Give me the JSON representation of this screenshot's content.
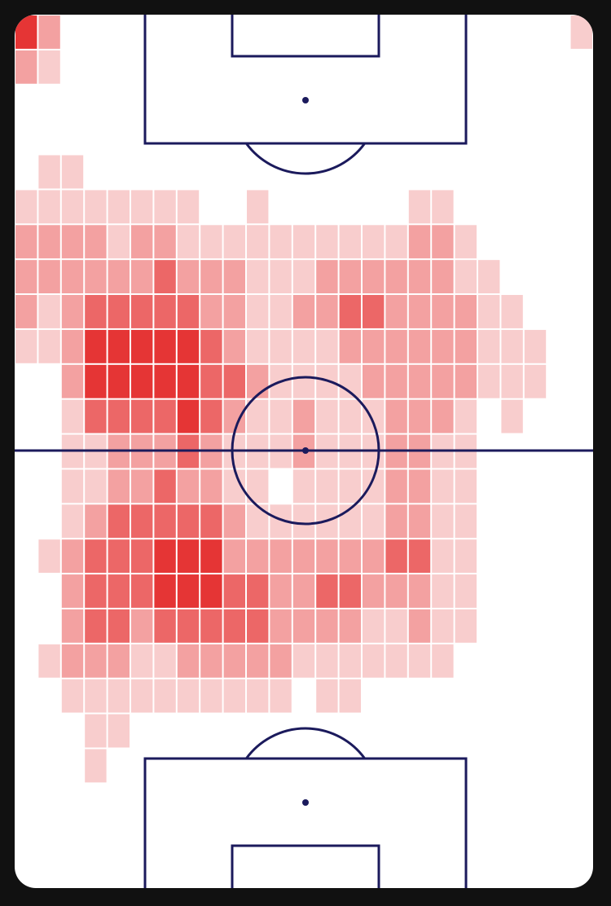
{
  "chart_data": {
    "type": "heatmap",
    "colors": [
      "#f8cdcd",
      "#f3a1a1",
      "#ec6767",
      "#e53535"
    ],
    "values": [
      [
        4,
        2,
        null,
        null,
        null,
        null,
        null,
        null,
        null,
        null,
        null,
        null,
        null,
        null,
        null,
        null,
        null,
        null,
        null,
        null,
        null,
        null,
        null,
        null,
        1
      ],
      [
        2,
        1,
        null,
        null,
        null,
        null,
        null,
        null,
        null,
        null,
        null,
        null,
        null,
        null,
        null,
        null,
        null,
        null,
        null,
        null,
        null,
        null,
        null,
        null,
        null
      ],
      [
        null,
        null,
        null,
        null,
        null,
        null,
        null,
        null,
        null,
        null,
        null,
        null,
        null,
        null,
        null,
        null,
        null,
        null,
        null,
        null,
        null,
        null,
        null,
        null,
        null
      ],
      [
        null,
        null,
        null,
        null,
        null,
        null,
        null,
        null,
        null,
        null,
        null,
        null,
        null,
        null,
        null,
        null,
        null,
        null,
        null,
        null,
        null,
        null,
        null,
        null,
        null
      ],
      [
        null,
        1,
        1,
        null,
        null,
        null,
        null,
        null,
        null,
        null,
        null,
        null,
        null,
        null,
        null,
        null,
        null,
        null,
        null,
        null,
        null,
        null,
        null,
        null,
        null
      ],
      [
        1,
        1,
        1,
        1,
        1,
        1,
        1,
        1,
        null,
        null,
        1,
        null,
        null,
        null,
        null,
        null,
        null,
        1,
        1,
        null,
        null,
        null,
        null,
        null,
        null
      ],
      [
        2,
        2,
        2,
        2,
        1,
        2,
        2,
        1,
        1,
        1,
        1,
        1,
        1,
        1,
        1,
        1,
        1,
        2,
        2,
        1,
        null,
        null,
        null,
        null,
        null
      ],
      [
        2,
        2,
        2,
        2,
        2,
        2,
        3,
        2,
        2,
        2,
        1,
        1,
        1,
        2,
        2,
        2,
        2,
        2,
        2,
        1,
        1,
        null,
        null,
        null,
        null
      ],
      [
        2,
        1,
        2,
        3,
        3,
        3,
        3,
        3,
        2,
        2,
        1,
        1,
        2,
        2,
        3,
        3,
        2,
        2,
        2,
        2,
        1,
        1,
        null,
        null,
        null
      ],
      [
        1,
        1,
        2,
        4,
        4,
        4,
        4,
        4,
        3,
        2,
        1,
        1,
        1,
        1,
        2,
        2,
        2,
        2,
        2,
        2,
        1,
        1,
        1,
        null,
        null
      ],
      [
        null,
        null,
        2,
        4,
        4,
        4,
        4,
        4,
        3,
        3,
        2,
        1,
        1,
        1,
        1,
        2,
        2,
        2,
        2,
        2,
        1,
        1,
        1,
        null,
        null
      ],
      [
        null,
        null,
        1,
        3,
        3,
        3,
        3,
        4,
        3,
        2,
        1,
        1,
        2,
        1,
        1,
        1,
        2,
        2,
        2,
        1,
        null,
        1,
        null,
        null,
        null
      ],
      [
        null,
        null,
        1,
        1,
        2,
        2,
        2,
        3,
        2,
        1,
        1,
        1,
        2,
        1,
        1,
        1,
        2,
        2,
        1,
        1,
        null,
        null,
        null,
        null,
        null
      ],
      [
        null,
        null,
        1,
        1,
        2,
        2,
        3,
        2,
        2,
        1,
        1,
        null,
        1,
        1,
        1,
        1,
        2,
        2,
        1,
        1,
        null,
        null,
        null,
        null,
        null
      ],
      [
        null,
        null,
        1,
        2,
        3,
        3,
        3,
        3,
        3,
        2,
        1,
        1,
        1,
        1,
        1,
        1,
        2,
        2,
        1,
        1,
        null,
        null,
        null,
        null,
        null
      ],
      [
        null,
        1,
        2,
        3,
        3,
        3,
        4,
        4,
        4,
        2,
        2,
        2,
        2,
        2,
        2,
        2,
        3,
        3,
        1,
        1,
        null,
        null,
        null,
        null,
        null
      ],
      [
        null,
        null,
        2,
        3,
        3,
        3,
        4,
        4,
        4,
        3,
        3,
        2,
        2,
        3,
        3,
        2,
        2,
        2,
        1,
        1,
        null,
        null,
        null,
        null,
        null
      ],
      [
        null,
        null,
        2,
        3,
        3,
        2,
        3,
        3,
        3,
        3,
        3,
        2,
        2,
        2,
        2,
        1,
        1,
        2,
        1,
        1,
        null,
        null,
        null,
        null,
        null
      ],
      [
        null,
        1,
        2,
        2,
        2,
        1,
        1,
        2,
        2,
        2,
        2,
        2,
        1,
        1,
        1,
        1,
        1,
        1,
        1,
        null,
        null,
        null,
        null,
        null,
        null
      ],
      [
        null,
        null,
        1,
        1,
        1,
        1,
        1,
        1,
        1,
        1,
        1,
        1,
        null,
        1,
        1,
        null,
        null,
        null,
        null,
        null,
        null,
        null,
        null,
        null,
        null
      ],
      [
        null,
        null,
        null,
        1,
        1,
        null,
        null,
        null,
        null,
        null,
        null,
        null,
        null,
        null,
        null,
        null,
        null,
        null,
        null,
        null,
        null,
        null,
        null,
        null,
        null
      ],
      [
        null,
        null,
        null,
        1,
        null,
        null,
        null,
        null,
        null,
        null,
        null,
        null,
        null,
        null,
        null,
        null,
        null,
        null,
        null,
        null,
        null,
        null,
        null,
        null,
        null
      ],
      [
        null,
        null,
        null,
        null,
        null,
        null,
        null,
        null,
        null,
        null,
        null,
        null,
        null,
        null,
        null,
        null,
        null,
        null,
        null,
        null,
        null,
        null,
        null,
        null,
        null
      ],
      [
        null,
        null,
        null,
        null,
        null,
        null,
        null,
        null,
        null,
        null,
        null,
        null,
        null,
        null,
        null,
        null,
        null,
        null,
        null,
        null,
        null,
        null,
        null,
        null,
        null
      ],
      [
        null,
        null,
        null,
        null,
        null,
        null,
        null,
        null,
        null,
        null,
        null,
        null,
        null,
        null,
        null,
        null,
        null,
        null,
        null,
        null,
        null,
        null,
        null,
        null,
        null
      ]
    ]
  }
}
